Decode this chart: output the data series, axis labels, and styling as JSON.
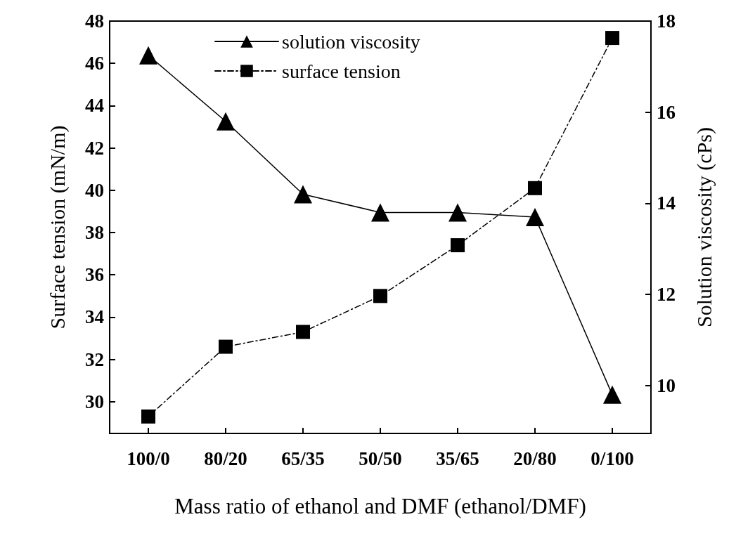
{
  "chart_data": {
    "type": "line",
    "xlabel": "Mass ratio of ethanol and DMF (ethanol/DMF)",
    "ylabel": "Surface tension (mN/m)",
    "y2label": "Solution viscosity (cPs)",
    "categories": [
      "100/0",
      "80/20",
      "65/35",
      "50/50",
      "35/65",
      "20/80",
      "0/100"
    ],
    "series": [
      {
        "name": "solution viscosity",
        "color": "#000000",
        "axis": "y2",
        "marker": "triangle",
        "line_style": "solid",
        "values": [
          17.25,
          15.8,
          14.2,
          13.8,
          13.8,
          13.7,
          9.8
        ]
      },
      {
        "name": "surface tension",
        "color": "#000000",
        "marker": "square",
        "line_style": "dashed",
        "values": [
          29.3,
          32.6,
          33.3,
          35.0,
          37.4,
          40.1,
          47.2
        ]
      }
    ],
    "ylim": [
      28.5,
      48
    ],
    "yticks": [
      30,
      32,
      34,
      36,
      38,
      40,
      42,
      44,
      46,
      48
    ],
    "y2lim": [
      8.95,
      18
    ],
    "y2ticks": [
      10,
      12,
      14,
      16,
      18
    ],
    "legend": "top",
    "grid": false
  }
}
